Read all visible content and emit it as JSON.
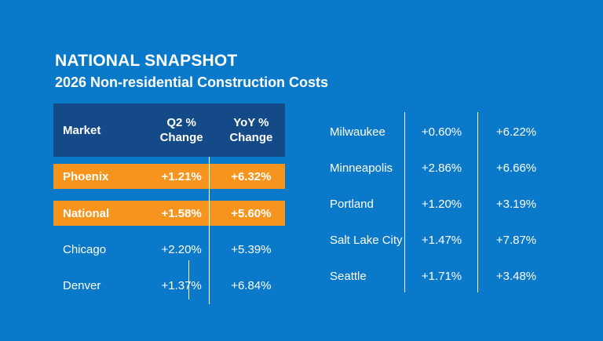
{
  "header": {
    "title": "NATIONAL SNAPSHOT",
    "subtitle": "2026 Non-residential Construction Costs"
  },
  "colors": {
    "background": "#0b79c9",
    "header_bg": "#134a87",
    "highlight": "#f7941d"
  },
  "left_table": {
    "columns": [
      "Market",
      "Q2 %",
      "Change",
      "YoY %",
      "Change"
    ],
    "rows": [
      {
        "market": "Phoenix",
        "q2": "+1.21%",
        "yoy": "+6.32%",
        "highlight": true
      },
      {
        "market": "National",
        "q2": "+1.58%",
        "yoy": "+5.60%",
        "highlight": true
      },
      {
        "market": "Chicago",
        "q2": "+2.20%",
        "yoy": "+5.39%",
        "highlight": false
      },
      {
        "market": "Denver",
        "q2": "+1.37%",
        "yoy": "+6.84%",
        "highlight": false
      }
    ]
  },
  "right_table": {
    "rows": [
      {
        "market": "Milwaukee",
        "q2": "+0.60%",
        "yoy": "+6.22%"
      },
      {
        "market": "Minneapolis",
        "q2": "+2.86%",
        "yoy": "+6.66%"
      },
      {
        "market": "Portland",
        "q2": "+1.20%",
        "yoy": "+3.19%"
      },
      {
        "market": "Salt Lake City",
        "q2": "+1.47%",
        "yoy": "+7.87%"
      },
      {
        "market": "Seattle",
        "q2": "+1.71%",
        "yoy": "+3.48%"
      }
    ]
  }
}
